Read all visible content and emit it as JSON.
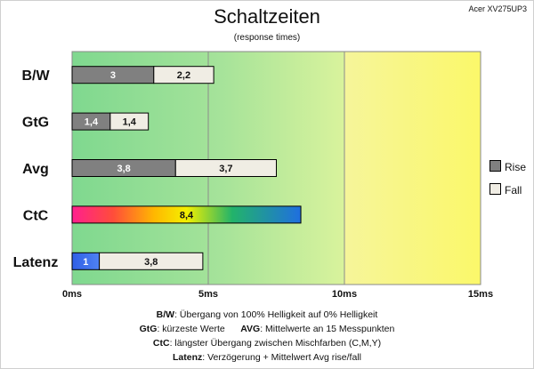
{
  "header": {
    "title": "Schaltzeiten",
    "subtitle": "(response times)",
    "model": "Acer XV275UP3"
  },
  "legend": {
    "items": [
      {
        "label": "Rise",
        "color": "#808080"
      },
      {
        "label": "Fall",
        "color": "#f0ede4"
      }
    ]
  },
  "footnotes": [
    {
      "key": "B/W",
      "text": ":  Übergang von 100% Helligkeit auf 0% Helligkeit"
    },
    {
      "key": "GtG",
      "text": ": kürzeste  Werte",
      "key2": "AVG",
      "text2": ": Mittelwerte  an 15 Messpunkten"
    },
    {
      "key": "CtC",
      "text": ": längster Übergang  zwischen Mischfarben (C,M,Y)"
    },
    {
      "key": "Latenz",
      "text": ": Verzögerung  + Mittelwert  Avg rise/fall"
    }
  ],
  "chart_data": {
    "type": "bar",
    "orientation": "horizontal",
    "stacked": true,
    "categories": [
      "B/W",
      "GtG",
      "Avg",
      "CtC",
      "Latenz"
    ],
    "series": [
      {
        "name": "Rise",
        "values": [
          3,
          1.4,
          3.8,
          8.4,
          1
        ],
        "labels": [
          "3",
          "1,4",
          "3,8",
          "8,4",
          "1"
        ]
      },
      {
        "name": "Fall",
        "values": [
          2.2,
          1.4,
          3.7,
          null,
          3.8
        ],
        "labels": [
          "2,2",
          "1,4",
          "3,7",
          "",
          "3,8"
        ]
      }
    ],
    "xlim": [
      0,
      15
    ],
    "xticks": [
      0,
      5,
      10,
      15
    ],
    "xtick_labels": [
      "0ms",
      "5ms",
      "10ms",
      "15ms"
    ],
    "background_zones": [
      {
        "from": 0,
        "to": 10,
        "color": "green"
      },
      {
        "from": 10,
        "to": 15,
        "color": "yellow"
      }
    ],
    "special_fills": {
      "CtC": "rainbow",
      "Latenz": "blue"
    },
    "legend_position": "right",
    "grid": true
  }
}
